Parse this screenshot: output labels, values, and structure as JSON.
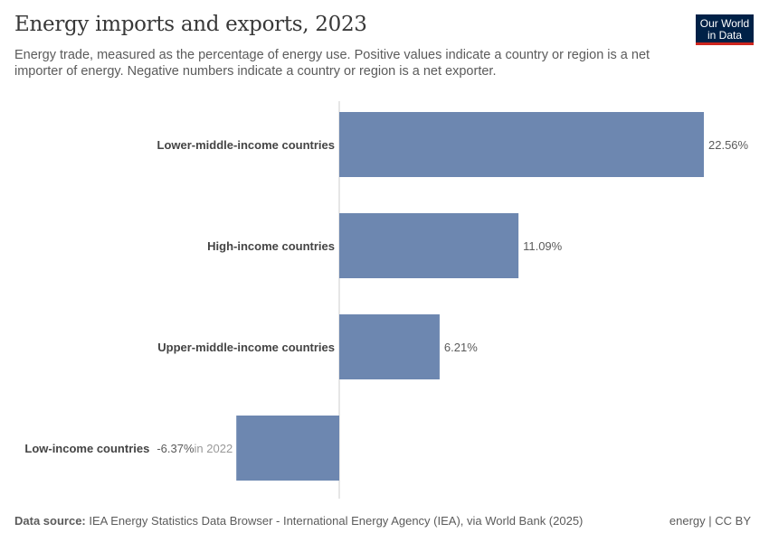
{
  "header": {
    "title": "Energy imports and exports, 2023",
    "subtitle": "Energy trade, measured as the percentage of energy use. Positive values indicate a country or region is a net importer of energy. Negative numbers indicate a country or region is a net exporter.",
    "logo": "Our World in Data"
  },
  "footer": {
    "source_label": "Data source:",
    "source": "IEA Energy Statistics Data Browser - International Energy Agency (IEA), via World Bank (2025)",
    "license": "energy | CC BY"
  },
  "chart_data": {
    "type": "bar",
    "orientation": "horizontal",
    "categories": [
      "Lower-middle-income countries",
      "High-income countries",
      "Upper-middle-income countries",
      "Low-income countries"
    ],
    "values": [
      22.56,
      11.09,
      6.21,
      -6.37
    ],
    "labels": [
      "22.56%",
      "11.09%",
      "6.21%",
      "-6.37%"
    ],
    "notes": [
      "",
      "",
      "",
      "in 2022"
    ],
    "unit": "%",
    "color": "#6d87b0"
  }
}
